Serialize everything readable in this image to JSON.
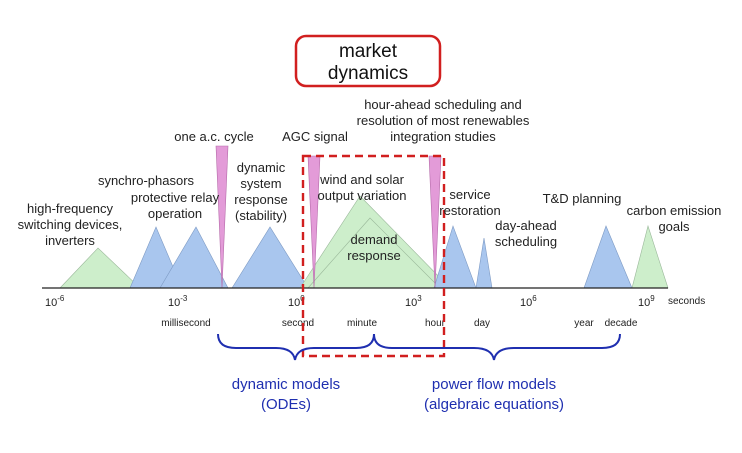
{
  "title": [
    "market",
    "dynamics"
  ],
  "event_labels": {
    "high_frequency": [
      "high-frequency",
      "switching devices,",
      "inverters"
    ],
    "synchro_phasors": [
      "synchro-phasors"
    ],
    "protective_relay": [
      "protective relay",
      "operation"
    ],
    "ac_cycle": [
      "one a.c. cycle"
    ],
    "dynamic_stability": [
      "dynamic",
      "system",
      "response",
      "(stability)"
    ],
    "agc_signal": [
      "AGC signal"
    ],
    "wind_solar": [
      "wind and solar",
      "output variation"
    ],
    "demand_response": [
      "demand",
      "response"
    ],
    "hour_ahead": [
      "hour-ahead scheduling and",
      "resolution of most renewables",
      "integration studies"
    ],
    "service_restoration": [
      "service",
      "restoration"
    ],
    "day_ahead": [
      "day-ahead",
      "scheduling"
    ],
    "td_planning": [
      "T&D planning"
    ],
    "carbon_goals": [
      "carbon emission",
      "goals"
    ]
  },
  "axis": {
    "ticks": [
      {
        "base": "10",
        "exp": "-6"
      },
      {
        "base": "10",
        "exp": "-3"
      },
      {
        "base": "10",
        "exp": "0"
      },
      {
        "base": "10",
        "exp": "3"
      },
      {
        "base": "10",
        "exp": "6"
      },
      {
        "base": "10",
        "exp": "9"
      }
    ],
    "unit": "seconds",
    "time_units": [
      "millisecond",
      "second",
      "minute",
      "hour",
      "day",
      "year",
      "decade"
    ]
  },
  "model_groups": [
    {
      "lines": [
        "dynamic models",
        "(ODEs)"
      ]
    },
    {
      "lines": [
        "power flow models",
        "(algebraic equations)"
      ]
    }
  ],
  "colors": {
    "blue_fill": "#a9c6ee",
    "green_fill": "#cdeecb",
    "pink_fill": "#e39bd8",
    "highlight_box": "#d11f1f",
    "bracket": "#1f2fb0"
  }
}
